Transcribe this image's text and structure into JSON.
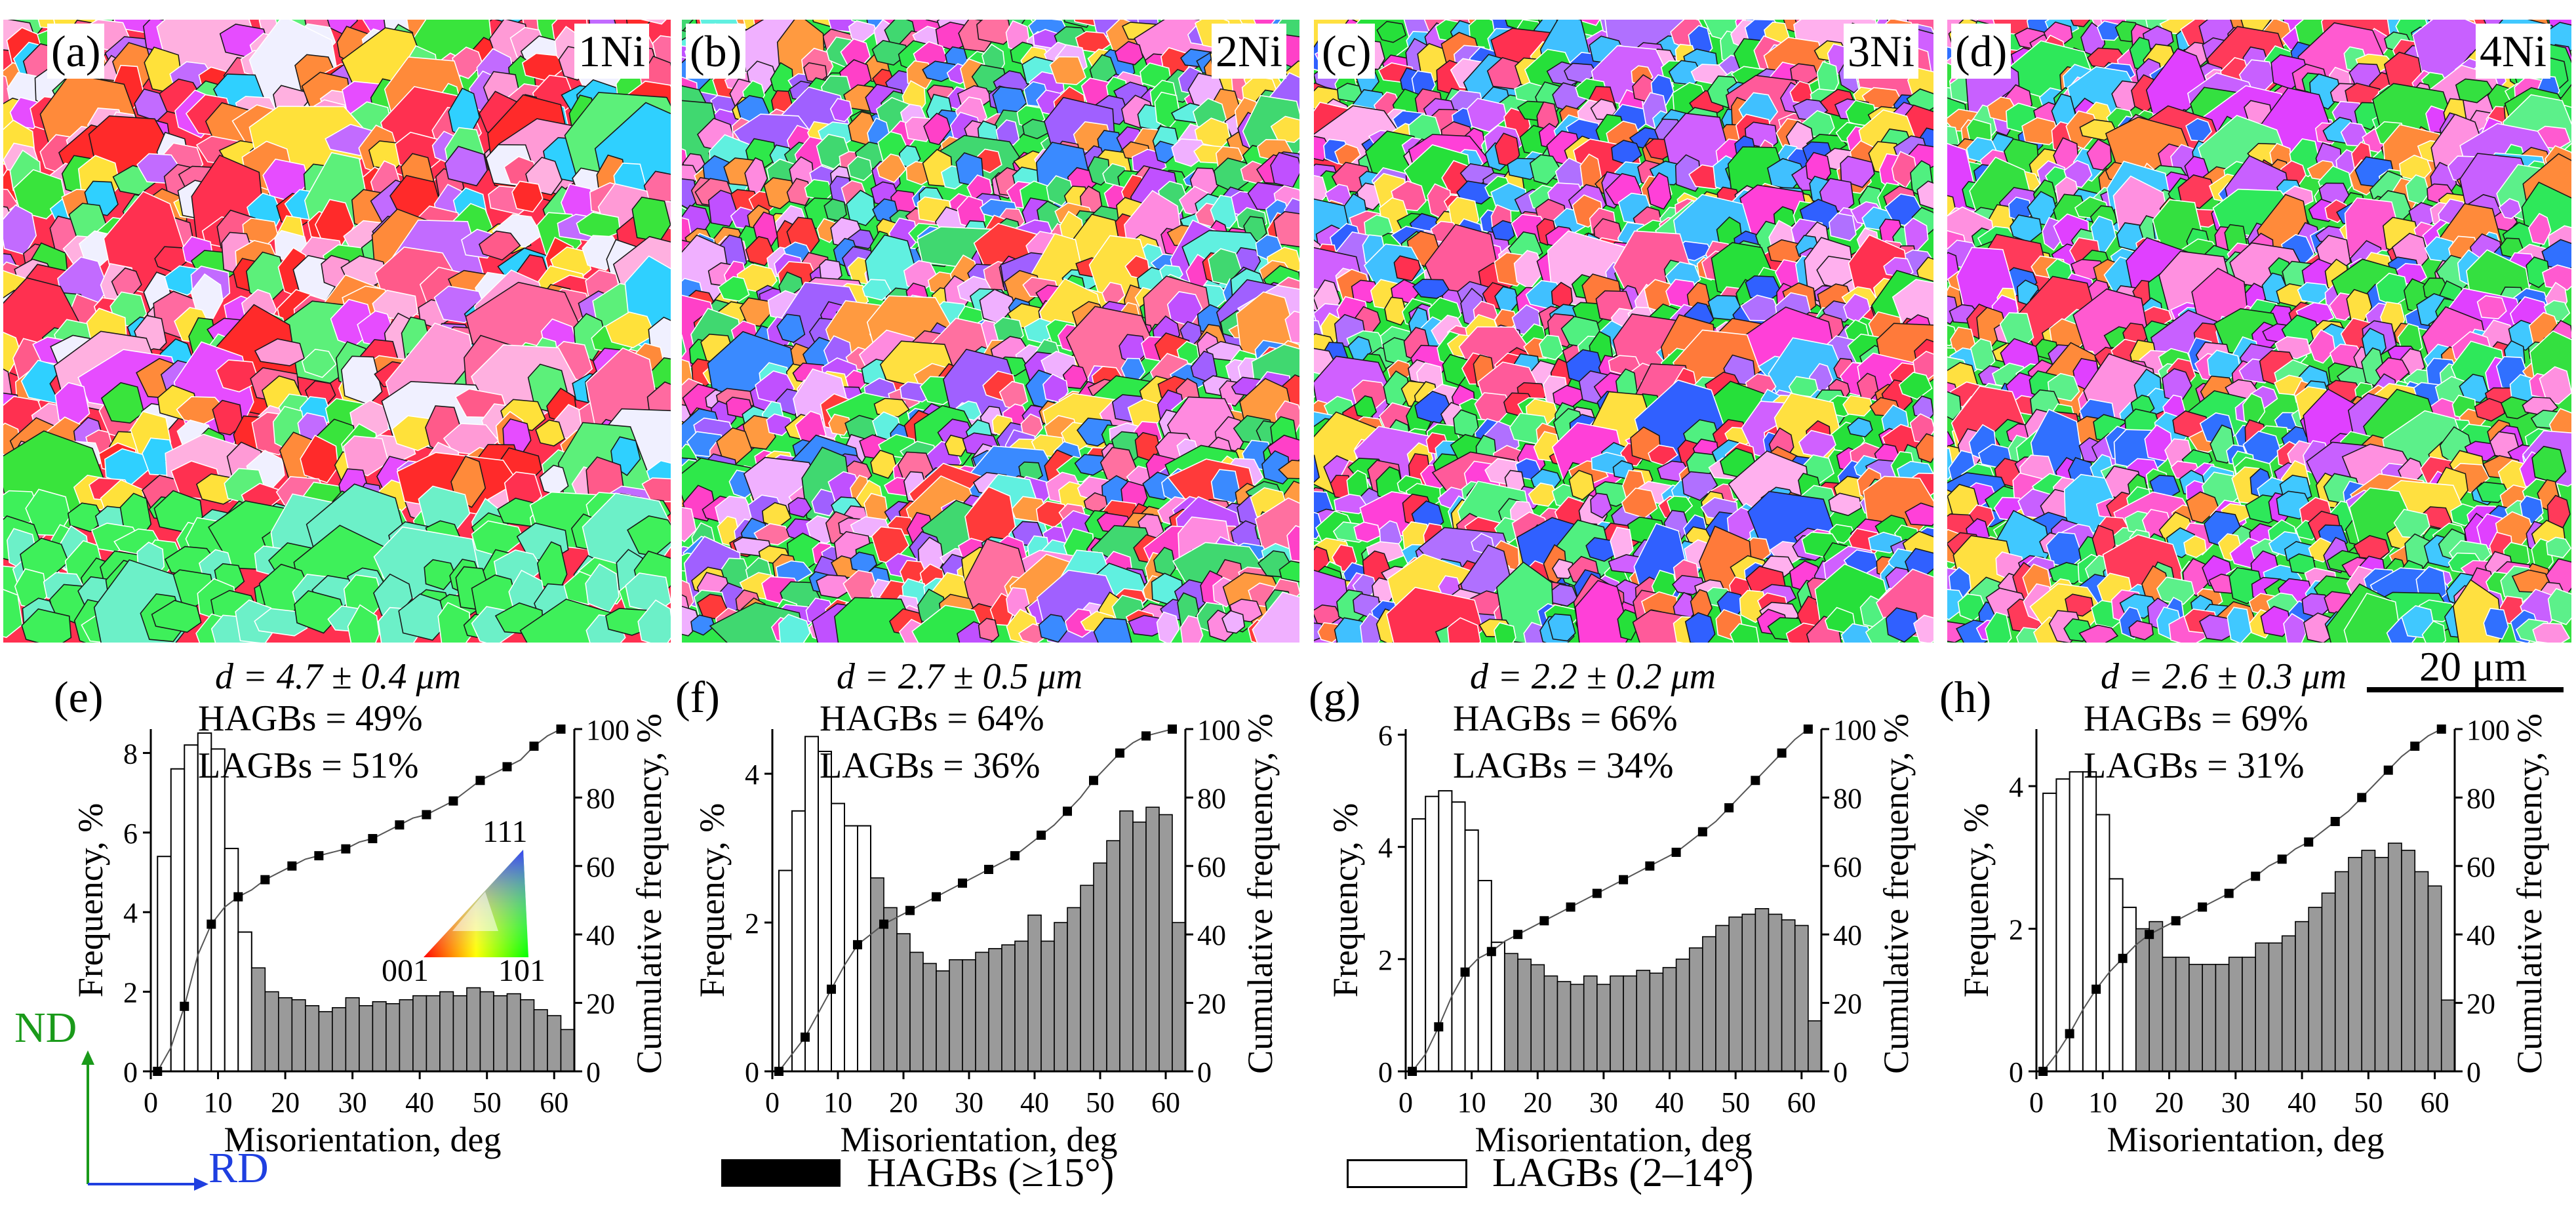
{
  "panels": [
    {
      "letter": "(a)",
      "label": "1Ni"
    },
    {
      "letter": "(b)",
      "label": "2Ni"
    },
    {
      "letter": "(c)",
      "label": "3Ni"
    },
    {
      "letter": "(d)",
      "label": "4Ni"
    }
  ],
  "scale_bar": "20 μm",
  "axes_indicator": {
    "vertical": "ND",
    "horizontal": "RD"
  },
  "ipf_key": {
    "top": "111",
    "left": "001",
    "right": "101"
  },
  "legend": {
    "hagb": "HAGBs (≥15°)",
    "lagb": "LAGBs (2–14°)"
  },
  "colors": {
    "hagb_bar": "#9a9a9a",
    "lagb_bar": "#ffffff",
    "nd": "#1a9a1a",
    "rd": "#1f3fe0"
  },
  "chart_data": [
    {
      "panel": "(e)",
      "type": "bar",
      "d": "d = 4.7 ± 0.4 μm",
      "hagbs": "HAGBs = 49%",
      "lagbs": "LAGBs = 51%",
      "xlabel": "Misorientation, deg",
      "ylabel": "Frequency, %",
      "y2label": "Cumulative frequency, %",
      "xlim": [
        0,
        63
      ],
      "ylim": [
        0,
        8.6
      ],
      "yticks": [
        0,
        2,
        4,
        6,
        8
      ],
      "y2lim": [
        0,
        100
      ],
      "xticks": [
        0,
        10,
        20,
        30,
        40,
        50,
        60
      ],
      "y2ticks": [
        0,
        20,
        40,
        60,
        80,
        100
      ],
      "bin_width": 2,
      "lagb_values": [
        5.4,
        7.6,
        8.2,
        8.5,
        8.1,
        5.6,
        3.5
      ],
      "hagb_values": [
        2.6,
        2.0,
        1.85,
        1.8,
        1.65,
        1.5,
        1.6,
        1.85,
        1.65,
        1.75,
        1.7,
        1.8,
        1.9,
        1.9,
        2.0,
        1.9,
        2.1,
        2.0,
        1.9,
        1.95,
        1.8,
        1.55,
        1.4,
        1.05
      ],
      "cumulative_x": [
        1,
        3,
        5,
        7,
        9,
        11,
        13,
        15,
        17,
        19,
        21,
        23,
        25,
        27,
        29,
        31,
        33,
        35,
        37,
        39,
        41,
        43,
        45,
        47,
        49,
        51,
        53,
        55,
        57,
        59,
        61
      ],
      "cumulative_y": [
        0,
        7,
        19,
        34,
        43,
        48,
        51,
        53,
        56,
        58,
        60,
        62,
        63,
        64,
        65,
        67,
        68,
        70,
        72,
        74,
        75,
        77,
        79,
        82,
        85,
        87,
        89,
        91,
        95,
        98,
        100
      ]
    },
    {
      "panel": "(f)",
      "type": "bar",
      "d": "d = 2.7 ± 0.5 μm",
      "hagbs": "HAGBs = 64%",
      "lagbs": "LAGBs = 36%",
      "xlabel": "Misorientation, deg",
      "ylabel": "Frequency, %",
      "y2label": "Cumulative frequency, %",
      "xlim": [
        0,
        63
      ],
      "ylim": [
        0,
        4.6
      ],
      "yticks": [
        0,
        2,
        4
      ],
      "y2lim": [
        0,
        100
      ],
      "xticks": [
        0,
        10,
        20,
        30,
        40,
        50,
        60
      ],
      "y2ticks": [
        0,
        20,
        40,
        60,
        80,
        100
      ],
      "bin_width": 2,
      "lagb_values": [
        2.7,
        3.5,
        4.5,
        4.3,
        3.6,
        3.3,
        3.3
      ],
      "hagb_values": [
        2.6,
        2.2,
        1.85,
        1.6,
        1.45,
        1.35,
        1.5,
        1.5,
        1.6,
        1.65,
        1.7,
        1.75,
        2.1,
        1.75,
        2.0,
        2.2,
        2.5,
        2.8,
        3.1,
        3.5,
        3.35,
        3.55,
        3.45,
        2.0
      ],
      "cumulative_x": [
        1,
        3,
        5,
        7,
        9,
        11,
        13,
        15,
        17,
        19,
        21,
        23,
        25,
        27,
        29,
        31,
        33,
        35,
        37,
        39,
        41,
        43,
        45,
        47,
        49,
        51,
        53,
        55,
        57,
        59,
        61
      ],
      "cumulative_y": [
        0,
        5,
        10,
        17,
        24,
        31,
        37,
        40,
        43,
        45,
        47,
        49,
        51,
        53,
        55,
        57,
        59,
        61,
        63,
        66,
        69,
        72,
        76,
        80,
        85,
        89,
        93,
        96,
        98,
        99,
        100
      ]
    },
    {
      "panel": "(g)",
      "type": "bar",
      "d": "d = 2.2 ± 0.2 μm",
      "hagbs": "HAGBs = 66%",
      "lagbs": "LAGBs = 34%",
      "xlabel": "Misorientation, deg",
      "ylabel": "Frequency, %",
      "y2label": "Cumulative frequency, %",
      "xlim": [
        0,
        63
      ],
      "ylim": [
        0,
        6.1
      ],
      "yticks": [
        0,
        2,
        4,
        6
      ],
      "y2lim": [
        0,
        100
      ],
      "xticks": [
        0,
        10,
        20,
        30,
        40,
        50,
        60
      ],
      "y2ticks": [
        0,
        20,
        40,
        60,
        80,
        100
      ],
      "bin_width": 2,
      "lagb_values": [
        4.5,
        4.9,
        5.0,
        4.8,
        4.3,
        3.4,
        2.3
      ],
      "hagb_values": [
        2.1,
        2.0,
        1.9,
        1.7,
        1.6,
        1.55,
        1.7,
        1.55,
        1.7,
        1.7,
        1.8,
        1.75,
        1.85,
        2.0,
        2.2,
        2.4,
        2.6,
        2.75,
        2.8,
        2.9,
        2.8,
        2.7,
        2.6,
        0.9
      ],
      "cumulative_x": [
        1,
        3,
        5,
        7,
        9,
        11,
        13,
        15,
        17,
        19,
        21,
        23,
        25,
        27,
        29,
        31,
        33,
        35,
        37,
        39,
        41,
        43,
        45,
        47,
        49,
        51,
        53,
        55,
        57,
        59,
        61
      ],
      "cumulative_y": [
        0,
        5,
        13,
        22,
        29,
        33,
        35,
        38,
        40,
        42,
        44,
        46,
        48,
        50,
        52,
        54,
        56,
        58,
        60,
        62,
        64,
        67,
        70,
        73,
        77,
        81,
        85,
        89,
        93,
        97,
        100
      ]
    },
    {
      "panel": "(h)",
      "type": "bar",
      "d": "d = 2.6 ± 0.3 μm",
      "hagbs": "HAGBs = 69%",
      "lagbs": "LAGBs = 31%",
      "xlabel": "Misorientation, deg",
      "ylabel": "Frequency, %",
      "y2label": "Cumulative frequency, %",
      "xlim": [
        0,
        63
      ],
      "ylim": [
        0,
        4.8
      ],
      "yticks": [
        0,
        2,
        4
      ],
      "y2lim": [
        0,
        100
      ],
      "xticks": [
        0,
        10,
        20,
        30,
        40,
        50,
        60
      ],
      "y2ticks": [
        0,
        20,
        40,
        60,
        80,
        100
      ],
      "bin_width": 2,
      "lagb_values": [
        3.9,
        4.1,
        4.2,
        4.2,
        3.6,
        2.7,
        2.3
      ],
      "hagb_values": [
        2.0,
        2.1,
        1.6,
        1.6,
        1.5,
        1.5,
        1.5,
        1.6,
        1.6,
        1.8,
        1.8,
        1.9,
        2.1,
        2.3,
        2.5,
        2.8,
        3.0,
        3.1,
        3.0,
        3.2,
        3.1,
        2.8,
        2.6,
        1.0
      ],
      "cumulative_x": [
        1,
        3,
        5,
        7,
        9,
        11,
        13,
        15,
        17,
        19,
        21,
        23,
        25,
        27,
        29,
        31,
        33,
        35,
        37,
        39,
        41,
        43,
        45,
        47,
        49,
        51,
        53,
        55,
        57,
        59,
        61
      ],
      "cumulative_y": [
        0,
        5,
        11,
        18,
        24,
        29,
        33,
        37,
        40,
        42,
        44,
        46,
        48,
        50,
        52,
        55,
        57,
        60,
        62,
        65,
        67,
        70,
        73,
        76,
        80,
        84,
        88,
        92,
        95,
        98,
        100
      ]
    }
  ]
}
